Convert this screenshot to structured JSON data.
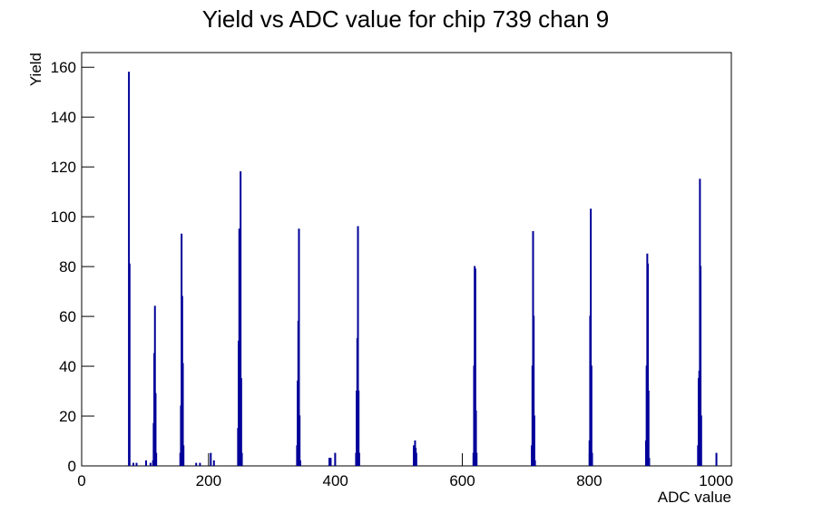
{
  "chart_data": {
    "type": "histogram",
    "title": "Yield vs ADC value for chip 739 chan 9",
    "x_label": "ADC value",
    "y_label": "Yield",
    "color": "#000099",
    "x": [
      74,
      75,
      81,
      86,
      101,
      108,
      112,
      113,
      114,
      115,
      116,
      117,
      155,
      156,
      157,
      158,
      159,
      160,
      180,
      186,
      203,
      208,
      246,
      247,
      248,
      249,
      250,
      251,
      252,
      339,
      340,
      341,
      342,
      343,
      344,
      390,
      392,
      399,
      432,
      433,
      434,
      435,
      436,
      437,
      523,
      524,
      525,
      526,
      527,
      617,
      618,
      619,
      620,
      621,
      622,
      709,
      710,
      711,
      712,
      713,
      714,
      800,
      801,
      802,
      803,
      804,
      889,
      890,
      891,
      892,
      893,
      894,
      971,
      972,
      973,
      974,
      975,
      976,
      1000
    ],
    "values": [
      158,
      81,
      1,
      1,
      2,
      1,
      2,
      17,
      45,
      64,
      29,
      5,
      5,
      24,
      93,
      68,
      41,
      8,
      1,
      1,
      5,
      2,
      15,
      50,
      95,
      70,
      118,
      35,
      5,
      8,
      34,
      58,
      95,
      20,
      2,
      3,
      3,
      5,
      5,
      30,
      51,
      96,
      30,
      5,
      8,
      6,
      10,
      7,
      5,
      5,
      40,
      80,
      79,
      22,
      5,
      8,
      40,
      94,
      60,
      20,
      2,
      10,
      60,
      103,
      40,
      5,
      10,
      40,
      85,
      81,
      30,
      3,
      8,
      35,
      38,
      115,
      80,
      20,
      5
    ],
    "xlim": [
      0,
      1024
    ],
    "ylim": [
      0,
      165.9
    ],
    "xticks": [
      0,
      200,
      400,
      600,
      800,
      1000
    ],
    "yticks": [
      0,
      20,
      40,
      60,
      80,
      100,
      120,
      140,
      160
    ]
  }
}
